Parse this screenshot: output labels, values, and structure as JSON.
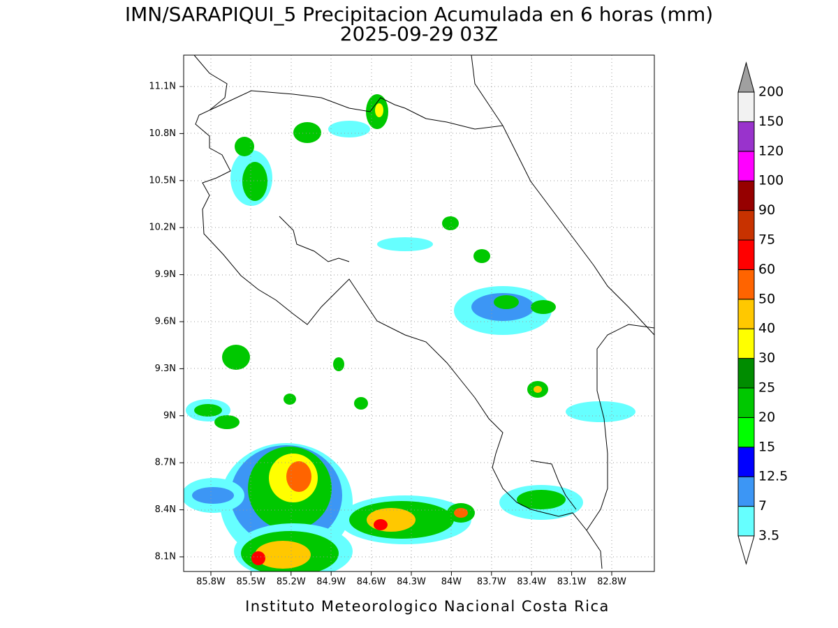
{
  "title": "IMN/SARAPIQUI_5 Precipitacion Acumulada en 6 horas (mm)",
  "subtitle": "2025-09-29 03Z",
  "lat_labels": [
    "11.1N",
    "10.8N",
    "10.5N",
    "10.2N",
    "9.9N",
    "9.6N",
    "9.3N",
    "9N",
    "8.7N",
    "8.4N",
    "8.1N"
  ],
  "lon_labels": [
    "85.8W",
    "85.5W",
    "85.2W",
    "84.9W",
    "84.6W",
    "84.3W",
    "84W",
    "83.7W",
    "83.4W",
    "83.1W",
    "82.8W"
  ],
  "colorbar": {
    "levels": [
      3.5,
      7,
      12.5,
      15,
      20,
      25,
      30,
      40,
      50,
      60,
      75,
      90,
      100,
      120,
      150,
      200
    ],
    "colors": [
      "#ffffff",
      "#66ffff",
      "#3c96f5",
      "#0000ff",
      "#00ff00",
      "#00c800",
      "#008c00",
      "#ffff00",
      "#ffc800",
      "#ff6400",
      "#ff0000",
      "#c83200",
      "#960000",
      "#ff00ff",
      "#9933cc",
      "#f2f2f2",
      "#a0a0a0"
    ]
  },
  "footer": "Instituto Meteorologico Nacional Costa Rica"
}
